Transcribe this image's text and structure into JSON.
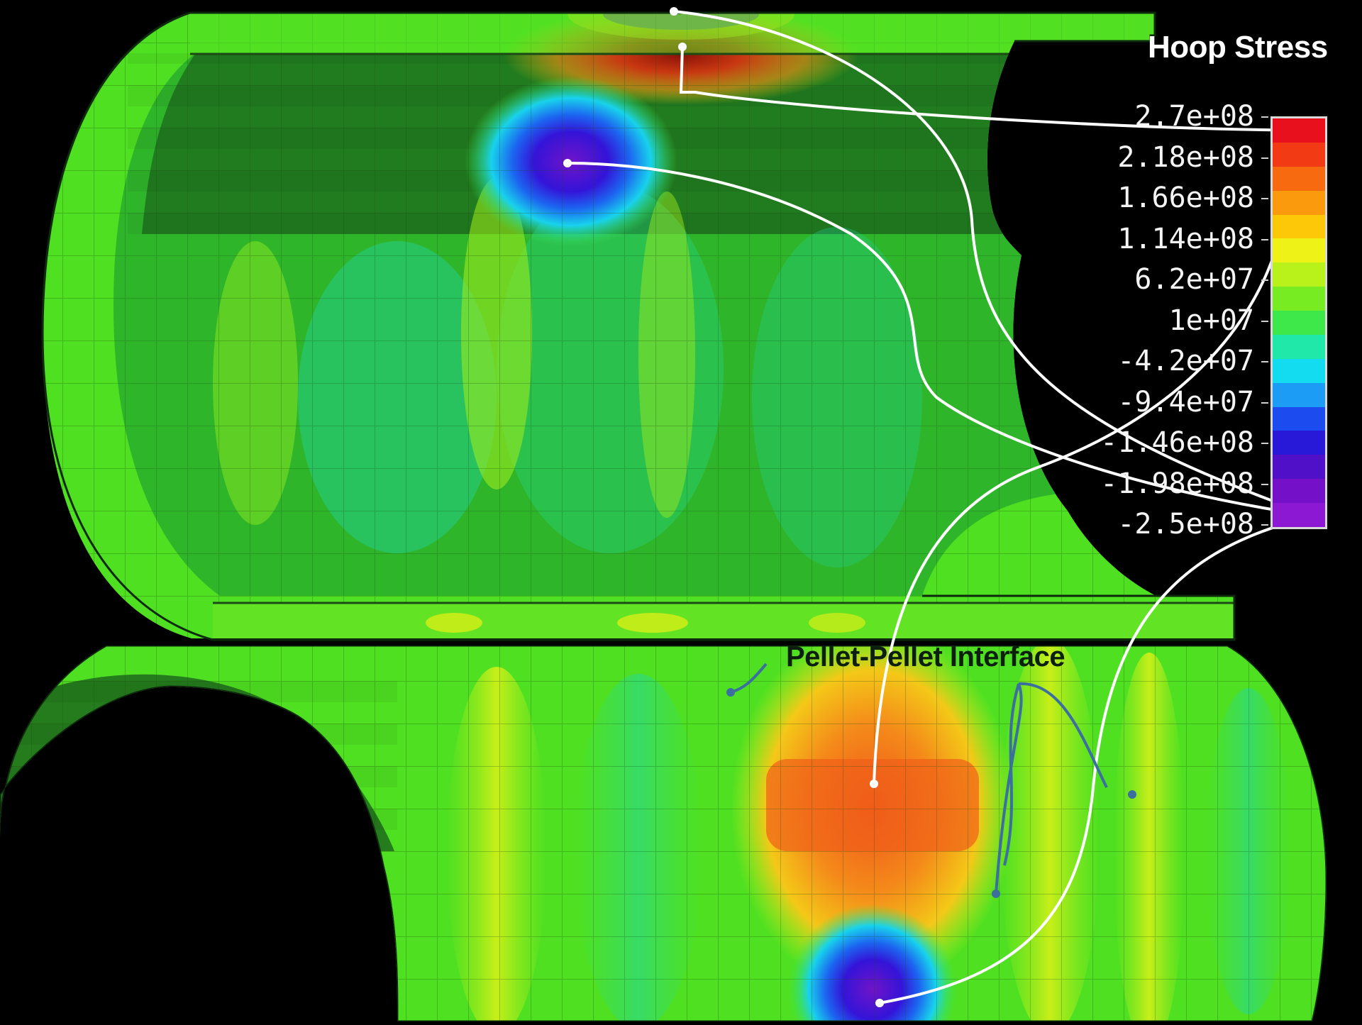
{
  "legend": {
    "title": "Hoop Stress",
    "ticks": [
      "2.7e+08",
      "2.18e+08",
      "1.66e+08",
      "1.14e+08",
      "6.2e+07",
      "1e+07",
      "-4.2e+07",
      "-9.4e+07",
      "-1.46e+08",
      "-1.98e+08",
      "-2.5e+08"
    ],
    "colors": [
      "#e8101c",
      "#f23a14",
      "#f86a10",
      "#fb9a0c",
      "#fcc808",
      "#eef216",
      "#b8f21a",
      "#78ec22",
      "#3ee84a",
      "#20e8a8",
      "#14dcf0",
      "#1c9cf4",
      "#1c4cf0",
      "#2818d8",
      "#5010c8",
      "#7410c8",
      "#8c18d4"
    ]
  },
  "annotations": {
    "interface_label": "Pellet-Pellet Interface"
  },
  "colors": {
    "background": "#000000",
    "base_green": "#4fe021",
    "dark_bore": "#1c5a1a",
    "arrow_white": "#ffffff",
    "arrow_blue": "#3a6f9e"
  }
}
